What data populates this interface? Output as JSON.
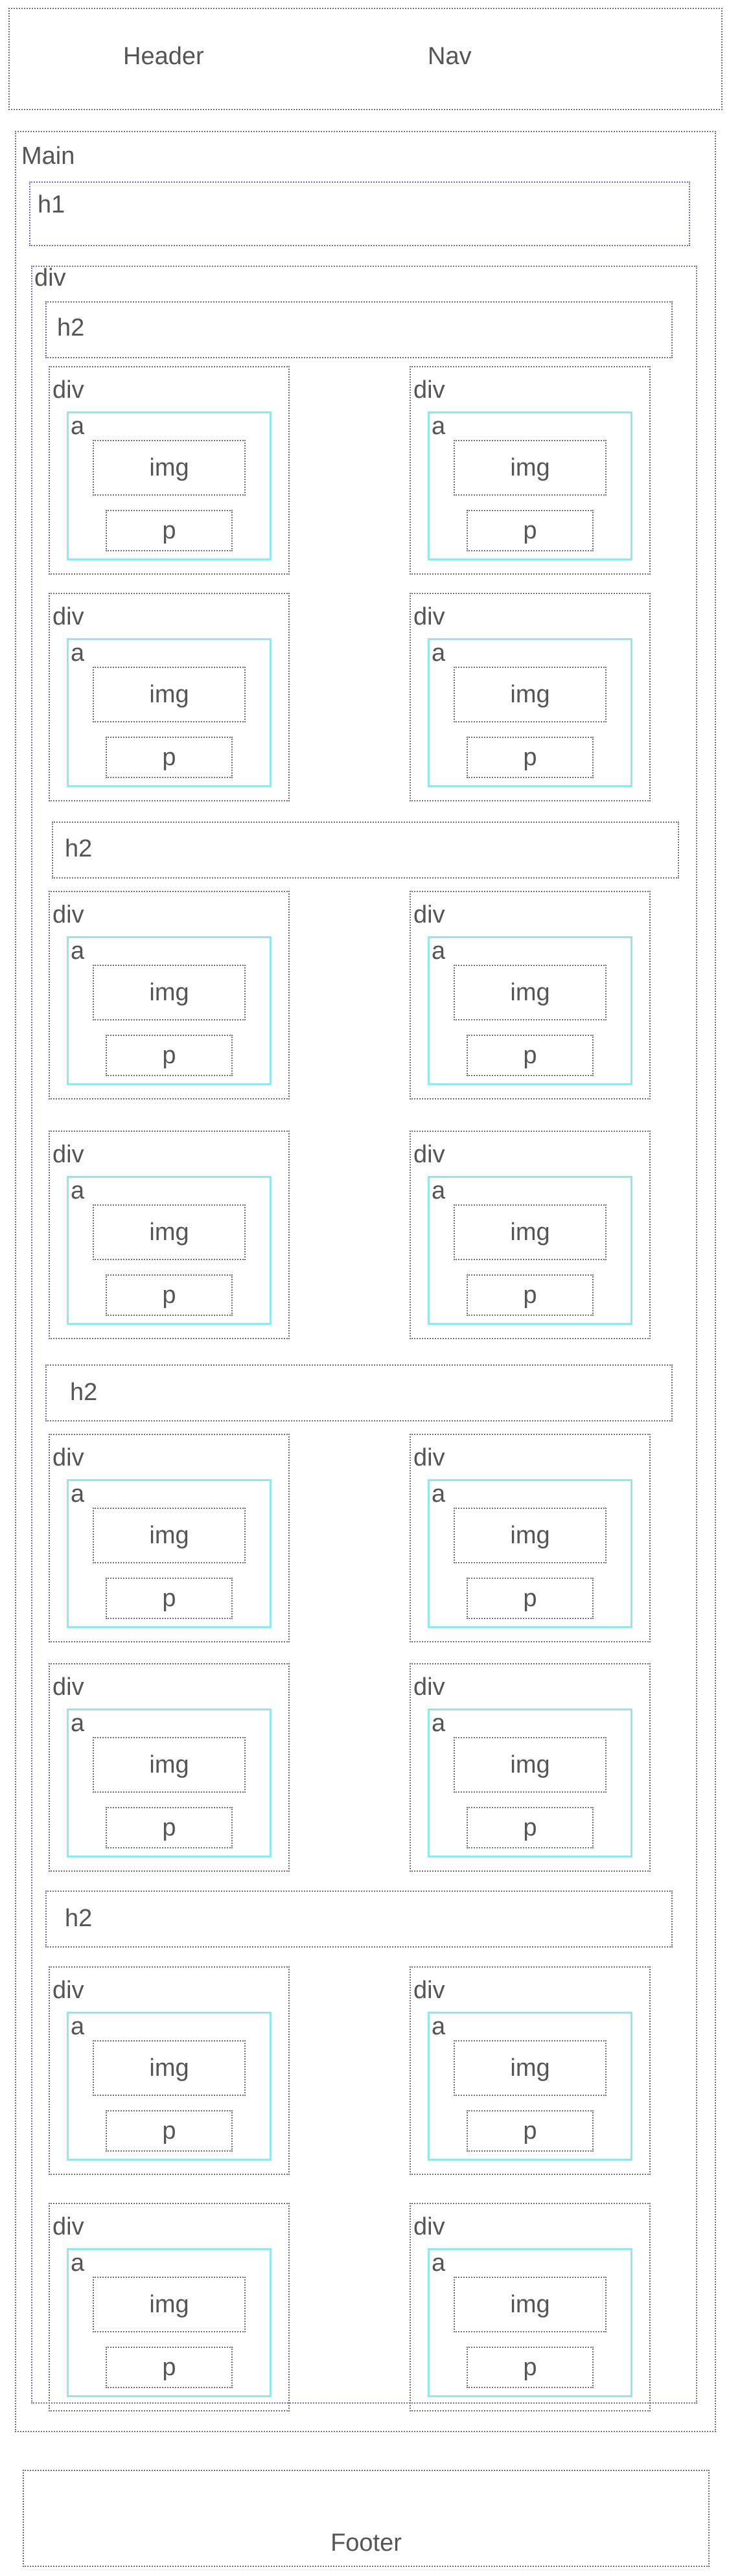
{
  "header": {
    "header_label": "Header",
    "nav_label": "Nav"
  },
  "main": {
    "main_label": "Main",
    "h1_label": "h1",
    "section_wrapper_label": "div",
    "sections": [
      {
        "h2_label": "h2"
      },
      {
        "h2_label": "h2"
      },
      {
        "h2_label": "h2"
      },
      {
        "h2_label": "h2"
      }
    ],
    "card": {
      "div_label": "div",
      "a_label": "a",
      "img_label": "img",
      "p_label": "p"
    }
  },
  "footer": {
    "footer_label": "Footer"
  }
}
